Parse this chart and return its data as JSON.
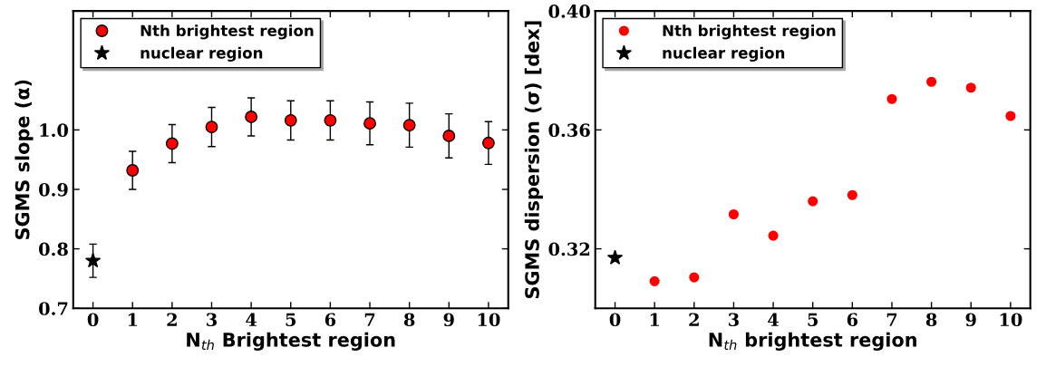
{
  "chart_data": [
    {
      "type": "scatter",
      "xlabel": "N$_{th}$ Brightest region",
      "ylabel": "SGMS slope (α)",
      "xlim": [
        -0.5,
        10.5
      ],
      "xticks": [
        0,
        1,
        2,
        3,
        4,
        5,
        6,
        7,
        8,
        9,
        10
      ],
      "ylim": [
        0.7,
        1.2
      ],
      "yticks": [
        0.7,
        0.8,
        0.9,
        {
          "value": 1.0,
          "label": "1.0"
        }
      ],
      "legend": "top left",
      "grid": false,
      "series": [
        {
          "name": "Nth brightest region",
          "color": "#ff0000",
          "marker": "circle",
          "x": [
            1,
            2,
            3,
            4,
            5,
            6,
            7,
            8,
            9,
            10
          ],
          "values": [
            0.932,
            0.977,
            1.005,
            1.022,
            1.016,
            1.016,
            1.011,
            1.008,
            0.99,
            0.978
          ],
          "errors": [
            0.032,
            0.032,
            0.033,
            0.032,
            0.033,
            0.033,
            0.036,
            0.037,
            0.037,
            0.036
          ]
        },
        {
          "name": "nuclear region",
          "color": "#000000",
          "marker": "star",
          "x": [
            0
          ],
          "values": [
            0.78
          ],
          "errors": [
            0.028
          ]
        }
      ]
    },
    {
      "type": "scatter",
      "xlabel": "N$_{th}$ brightest region",
      "ylabel": "SGMS dispersion (σ) [dex]",
      "xlim": [
        -0.5,
        10.5
      ],
      "xticks": [
        0,
        1,
        2,
        3,
        4,
        5,
        6,
        7,
        8,
        9,
        10
      ],
      "ylim": [
        0.3,
        0.4
      ],
      "yticks": [
        0.32,
        0.36,
        {
          "value": 0.4,
          "label": "0.40"
        }
      ],
      "legend": "top left",
      "grid": false,
      "series": [
        {
          "name": "Nth brightest region",
          "color": "#ff0000",
          "marker": "circle",
          "x": [
            1,
            2,
            3,
            4,
            5,
            6,
            7,
            8,
            9,
            10
          ],
          "values": [
            0.3091,
            0.3104,
            0.3316,
            0.3244,
            0.336,
            0.3381,
            0.3704,
            0.3762,
            0.3742,
            0.3647
          ]
        },
        {
          "name": "nuclear region",
          "color": "#000000",
          "marker": "star",
          "x": [
            0
          ],
          "values": [
            0.317
          ]
        }
      ]
    }
  ]
}
